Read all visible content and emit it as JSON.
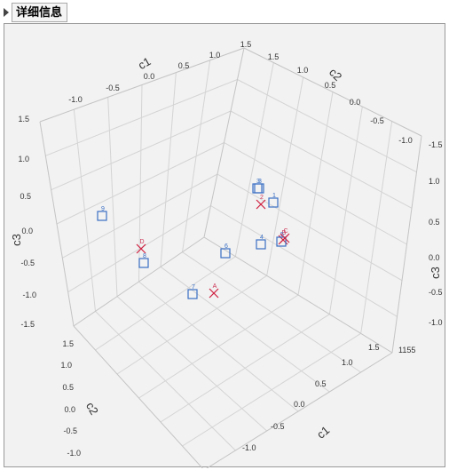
{
  "header": {
    "title": "详细信息"
  },
  "chart_data": {
    "type": "scatter",
    "title": "",
    "axes": {
      "c1": {
        "label": "c1",
        "range": [
          -1.5,
          1.5
        ],
        "ticks": [
          "-1.0",
          "-0.5",
          "0.0",
          "0.5",
          "1.0",
          "1.5"
        ]
      },
      "c2": {
        "label": "c2",
        "range": [
          -1.5,
          1.5
        ],
        "ticks": [
          "-1.0",
          "-0.5",
          "0.0",
          "0.5",
          "1.0",
          "1.5"
        ]
      },
      "c3": {
        "label": "c3",
        "range": [
          -1.5,
          1.5
        ],
        "ticks": [
          "-1.5",
          "-1.0",
          "-0.5",
          "0.0",
          "0.5",
          "1.0",
          "1.5"
        ]
      }
    },
    "grid": true,
    "corner_label": "1155",
    "colors": {
      "square": "#3a6fc4",
      "cross": "#d02040"
    },
    "points": [
      {
        "label": "9",
        "marker": "square"
      },
      {
        "label": "D",
        "marker": "cross"
      },
      {
        "label": "8",
        "marker": "square"
      },
      {
        "label": "3",
        "marker": "square"
      },
      {
        "label": "2",
        "marker": "cross"
      },
      {
        "label": "4",
        "marker": "square"
      },
      {
        "label": "B",
        "marker": "cross"
      },
      {
        "label": "3",
        "marker": "square"
      },
      {
        "label": "1",
        "marker": "square"
      },
      {
        "label": "5",
        "marker": "square"
      },
      {
        "label": "C",
        "marker": "cross"
      },
      {
        "label": "6",
        "marker": "square"
      },
      {
        "label": "7",
        "marker": "square"
      },
      {
        "label": "A",
        "marker": "cross"
      }
    ]
  }
}
